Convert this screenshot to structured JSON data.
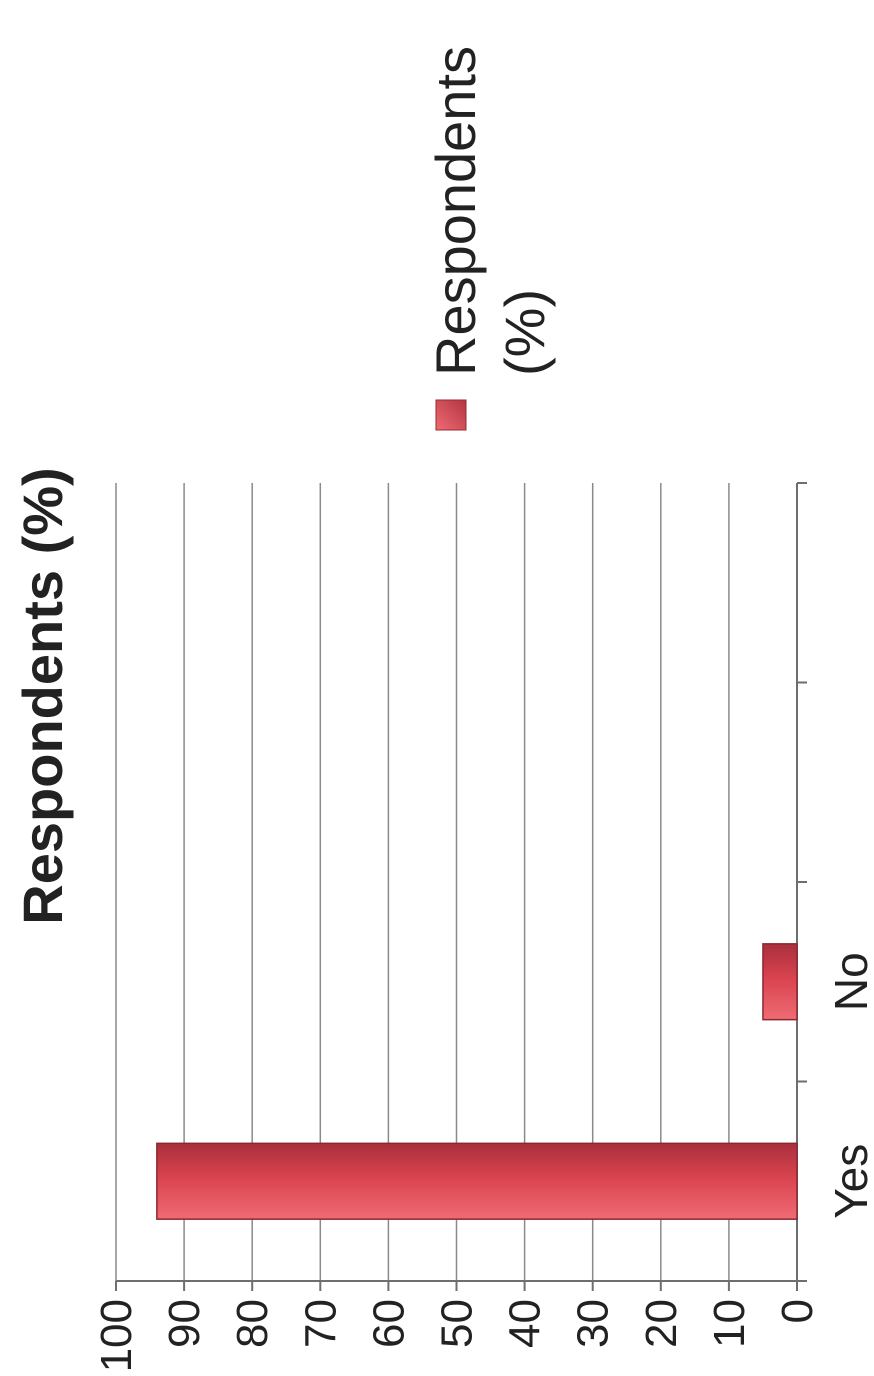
{
  "chart_data": {
    "type": "bar",
    "orientation": "horizontal",
    "title": "Respondents (%)",
    "categories": [
      "Yes",
      "No",
      "",
      ""
    ],
    "series": [
      {
        "name": "Respondents (%)",
        "values": [
          94,
          5,
          null,
          null
        ]
      }
    ],
    "xlim": [
      0,
      100
    ],
    "ticks": [
      0,
      10,
      20,
      30,
      40,
      50,
      60,
      70,
      80,
      90,
      100
    ],
    "grid": true,
    "legend": {
      "position": "right",
      "labels": [
        "Respondents",
        "(%)"
      ]
    },
    "colors": {
      "bar": "#d9434f",
      "bar_dark": "#a8303c",
      "bar_light": "#ef6b74"
    }
  }
}
